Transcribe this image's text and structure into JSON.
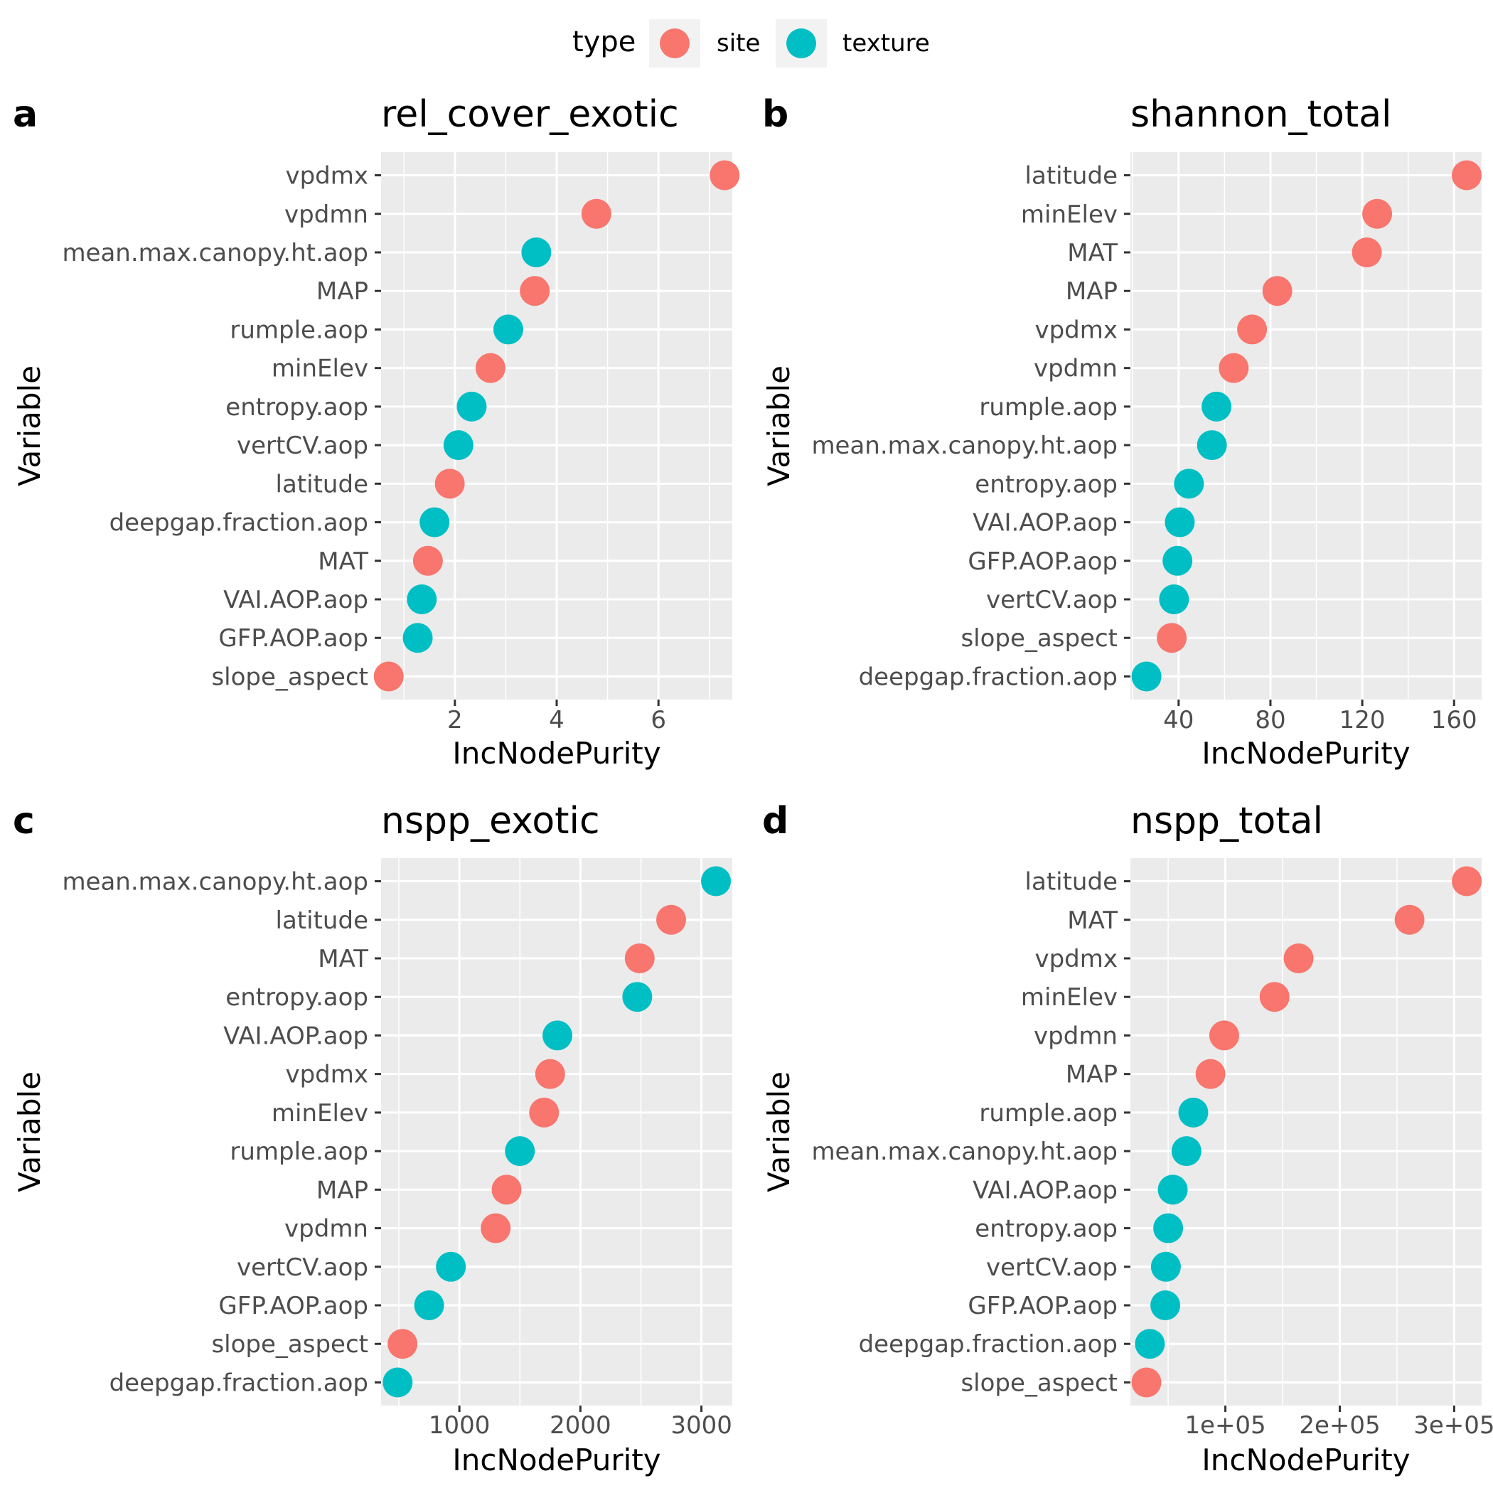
{
  "legend": {
    "title": "type",
    "items": [
      {
        "label": "site",
        "color": "#F8766D"
      },
      {
        "label": "texture",
        "color": "#00BFC4"
      }
    ],
    "placement": "top"
  },
  "colors": {
    "site": "#F8766D",
    "texture": "#00BFC4",
    "panel_background": "#EBEBEB",
    "grid": "#FFFFFF",
    "text": "#000000",
    "tick_text": "#4D4D4D"
  },
  "chart_data": [
    {
      "tag": "a",
      "type": "scatter",
      "title": "rel_cover_exotic",
      "xlabel": "IncNodePurity",
      "ylabel": "Variable",
      "xlim": [
        0.55,
        7.45
      ],
      "xticks": [
        2,
        4,
        6
      ],
      "xtick_labels": [
        "2",
        "4",
        "6"
      ],
      "grid": true,
      "points": [
        {
          "variable": "vpdmx",
          "value": 7.3,
          "type": "site"
        },
        {
          "variable": "vpdmn",
          "value": 4.78,
          "type": "site"
        },
        {
          "variable": "mean.max.canopy.ht.aop",
          "value": 3.6,
          "type": "texture"
        },
        {
          "variable": "MAP",
          "value": 3.57,
          "type": "site"
        },
        {
          "variable": "rumple.aop",
          "value": 3.05,
          "type": "texture"
        },
        {
          "variable": "minElev",
          "value": 2.7,
          "type": "site"
        },
        {
          "variable": "entropy.aop",
          "value": 2.33,
          "type": "texture"
        },
        {
          "variable": "vertCV.aop",
          "value": 2.07,
          "type": "texture"
        },
        {
          "variable": "latitude",
          "value": 1.9,
          "type": "site"
        },
        {
          "variable": "deepgap.fraction.aop",
          "value": 1.6,
          "type": "texture"
        },
        {
          "variable": "MAT",
          "value": 1.47,
          "type": "site"
        },
        {
          "variable": "VAI.AOP.aop",
          "value": 1.35,
          "type": "texture"
        },
        {
          "variable": "GFP.AOP.aop",
          "value": 1.27,
          "type": "texture"
        },
        {
          "variable": "slope_aspect",
          "value": 0.7,
          "type": "site"
        }
      ]
    },
    {
      "tag": "b",
      "type": "scatter",
      "title": "shannon_total",
      "xlabel": "IncNodePurity",
      "ylabel": "Variable",
      "xlim": [
        19,
        172
      ],
      "xticks": [
        40,
        80,
        120,
        160
      ],
      "xtick_labels": [
        "40",
        "80",
        "120",
        "160"
      ],
      "grid": true,
      "points": [
        {
          "variable": "latitude",
          "value": 165.5,
          "type": "site"
        },
        {
          "variable": "minElev",
          "value": 126.5,
          "type": "site"
        },
        {
          "variable": "MAT",
          "value": 122,
          "type": "site"
        },
        {
          "variable": "MAP",
          "value": 83,
          "type": "site"
        },
        {
          "variable": "vpdmx",
          "value": 72,
          "type": "site"
        },
        {
          "variable": "vpdmn",
          "value": 64,
          "type": "site"
        },
        {
          "variable": "rumple.aop",
          "value": 56.5,
          "type": "texture"
        },
        {
          "variable": "mean.max.canopy.ht.aop",
          "value": 54.5,
          "type": "texture"
        },
        {
          "variable": "entropy.aop",
          "value": 44.5,
          "type": "texture"
        },
        {
          "variable": "VAI.AOP.aop",
          "value": 40.5,
          "type": "texture"
        },
        {
          "variable": "GFP.AOP.aop",
          "value": 39.5,
          "type": "texture"
        },
        {
          "variable": "vertCV.aop",
          "value": 38,
          "type": "texture"
        },
        {
          "variable": "slope_aspect",
          "value": 37,
          "type": "site"
        },
        {
          "variable": "deepgap.fraction.aop",
          "value": 26,
          "type": "texture"
        }
      ]
    },
    {
      "tag": "c",
      "type": "scatter",
      "title": "nspp_exotic",
      "xlabel": "IncNodePurity",
      "ylabel": "Variable",
      "xlim": [
        353,
        3255
      ],
      "xticks": [
        1000,
        2000,
        3000
      ],
      "xtick_labels": [
        "1000",
        "2000",
        "3000"
      ],
      "grid": true,
      "points": [
        {
          "variable": "mean.max.canopy.ht.aop",
          "value": 3120,
          "type": "texture"
        },
        {
          "variable": "latitude",
          "value": 2750,
          "type": "site"
        },
        {
          "variable": "MAT",
          "value": 2490,
          "type": "site"
        },
        {
          "variable": "entropy.aop",
          "value": 2470,
          "type": "texture"
        },
        {
          "variable": "VAI.AOP.aop",
          "value": 1810,
          "type": "texture"
        },
        {
          "variable": "vpdmx",
          "value": 1750,
          "type": "site"
        },
        {
          "variable": "minElev",
          "value": 1700,
          "type": "site"
        },
        {
          "variable": "rumple.aop",
          "value": 1500,
          "type": "texture"
        },
        {
          "variable": "MAP",
          "value": 1390,
          "type": "site"
        },
        {
          "variable": "vpdmn",
          "value": 1300,
          "type": "site"
        },
        {
          "variable": "vertCV.aop",
          "value": 930,
          "type": "texture"
        },
        {
          "variable": "GFP.AOP.aop",
          "value": 750,
          "type": "texture"
        },
        {
          "variable": "slope_aspect",
          "value": 530,
          "type": "site"
        },
        {
          "variable": "deepgap.fraction.aop",
          "value": 490,
          "type": "texture"
        }
      ]
    },
    {
      "tag": "d",
      "type": "scatter",
      "title": "nspp_total",
      "xlabel": "IncNodePurity",
      "ylabel": "Variable",
      "xlim": [
        17000,
        324000
      ],
      "xticks": [
        100000,
        200000,
        300000
      ],
      "xtick_labels": [
        "1e+05",
        "2e+05",
        "3e+05"
      ],
      "grid": true,
      "points": [
        {
          "variable": "latitude",
          "value": 311000,
          "type": "site"
        },
        {
          "variable": "MAT",
          "value": 261000,
          "type": "site"
        },
        {
          "variable": "vpdmx",
          "value": 164000,
          "type": "site"
        },
        {
          "variable": "minElev",
          "value": 143000,
          "type": "site"
        },
        {
          "variable": "vpdmn",
          "value": 99000,
          "type": "site"
        },
        {
          "variable": "MAP",
          "value": 87000,
          "type": "site"
        },
        {
          "variable": "rumple.aop",
          "value": 72000,
          "type": "texture"
        },
        {
          "variable": "mean.max.canopy.ht.aop",
          "value": 66000,
          "type": "texture"
        },
        {
          "variable": "VAI.AOP.aop",
          "value": 54000,
          "type": "texture"
        },
        {
          "variable": "entropy.aop",
          "value": 50000,
          "type": "texture"
        },
        {
          "variable": "vertCV.aop",
          "value": 48000,
          "type": "texture"
        },
        {
          "variable": "GFP.AOP.aop",
          "value": 47500,
          "type": "texture"
        },
        {
          "variable": "deepgap.fraction.aop",
          "value": 34000,
          "type": "texture"
        },
        {
          "variable": "slope_aspect",
          "value": 31000,
          "type": "site"
        }
      ]
    }
  ]
}
